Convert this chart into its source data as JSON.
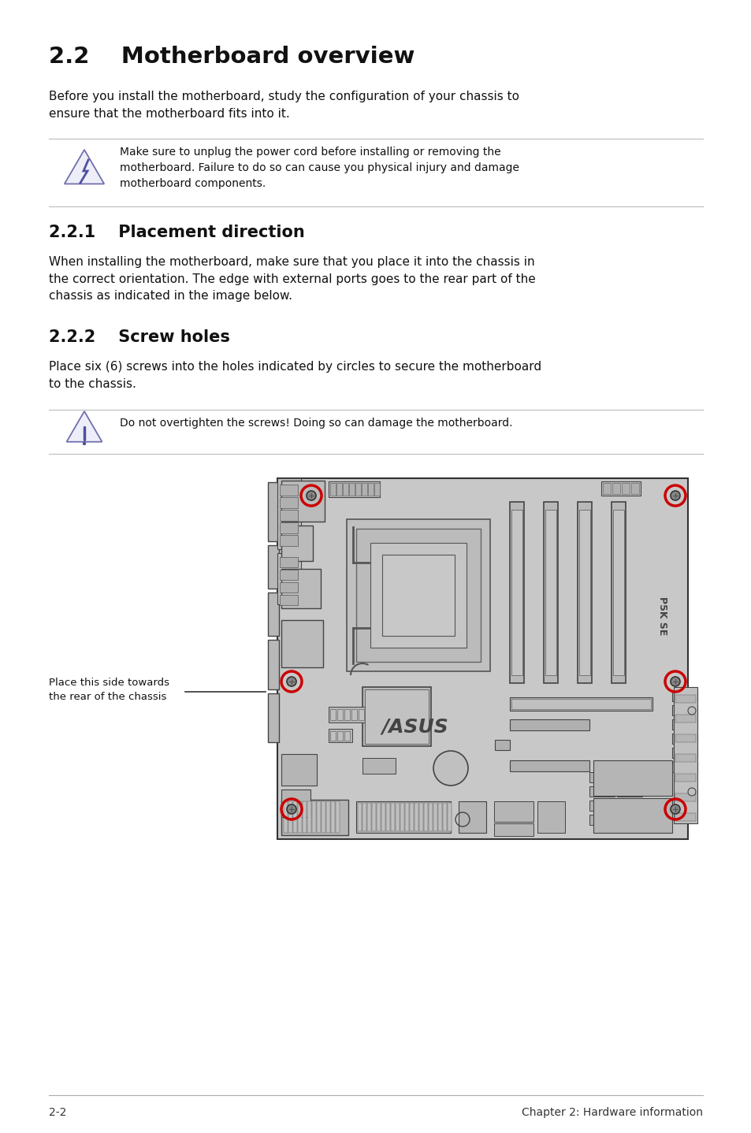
{
  "bg_color": "#ffffff",
  "title_main": "2.2    Motherboard overview",
  "title_main_size": 21,
  "body_text1": "Before you install the motherboard, study the configuration of your chassis to\nensure that the motherboard fits into it.",
  "body_text1_size": 11,
  "warning1_text": "Make sure to unplug the power cord before installing or removing the\nmotherboard. Failure to do so can cause you physical injury and damage\nmotherboard components.",
  "section221_title": "2.2.1    Placement direction",
  "section221_size": 15,
  "section221_body": "When installing the motherboard, make sure that you place it into the chassis in\nthe correct orientation. The edge with external ports goes to the rear part of the\nchassis as indicated in the image below.",
  "section222_title": "2.2.2    Screw holes",
  "section222_size": 15,
  "section222_body": "Place six (6) screws into the holes indicated by circles to secure the motherboard\nto the chassis.",
  "warning2_text": "Do not overtighten the screws! Doing so can damage the motherboard.",
  "placement_label": "Place this side towards\nthe rear of the chassis",
  "footer_left": "2-2",
  "footer_right": "Chapter 2: Hardware information",
  "mb_color": "#c8c8c8",
  "mb_border_color": "#333333",
  "screw_ring_color": "#cc0000",
  "warn_icon_color1": "#7070b0",
  "warn_icon_color2": "#5050a0",
  "warn_fill": "#eeeef8"
}
